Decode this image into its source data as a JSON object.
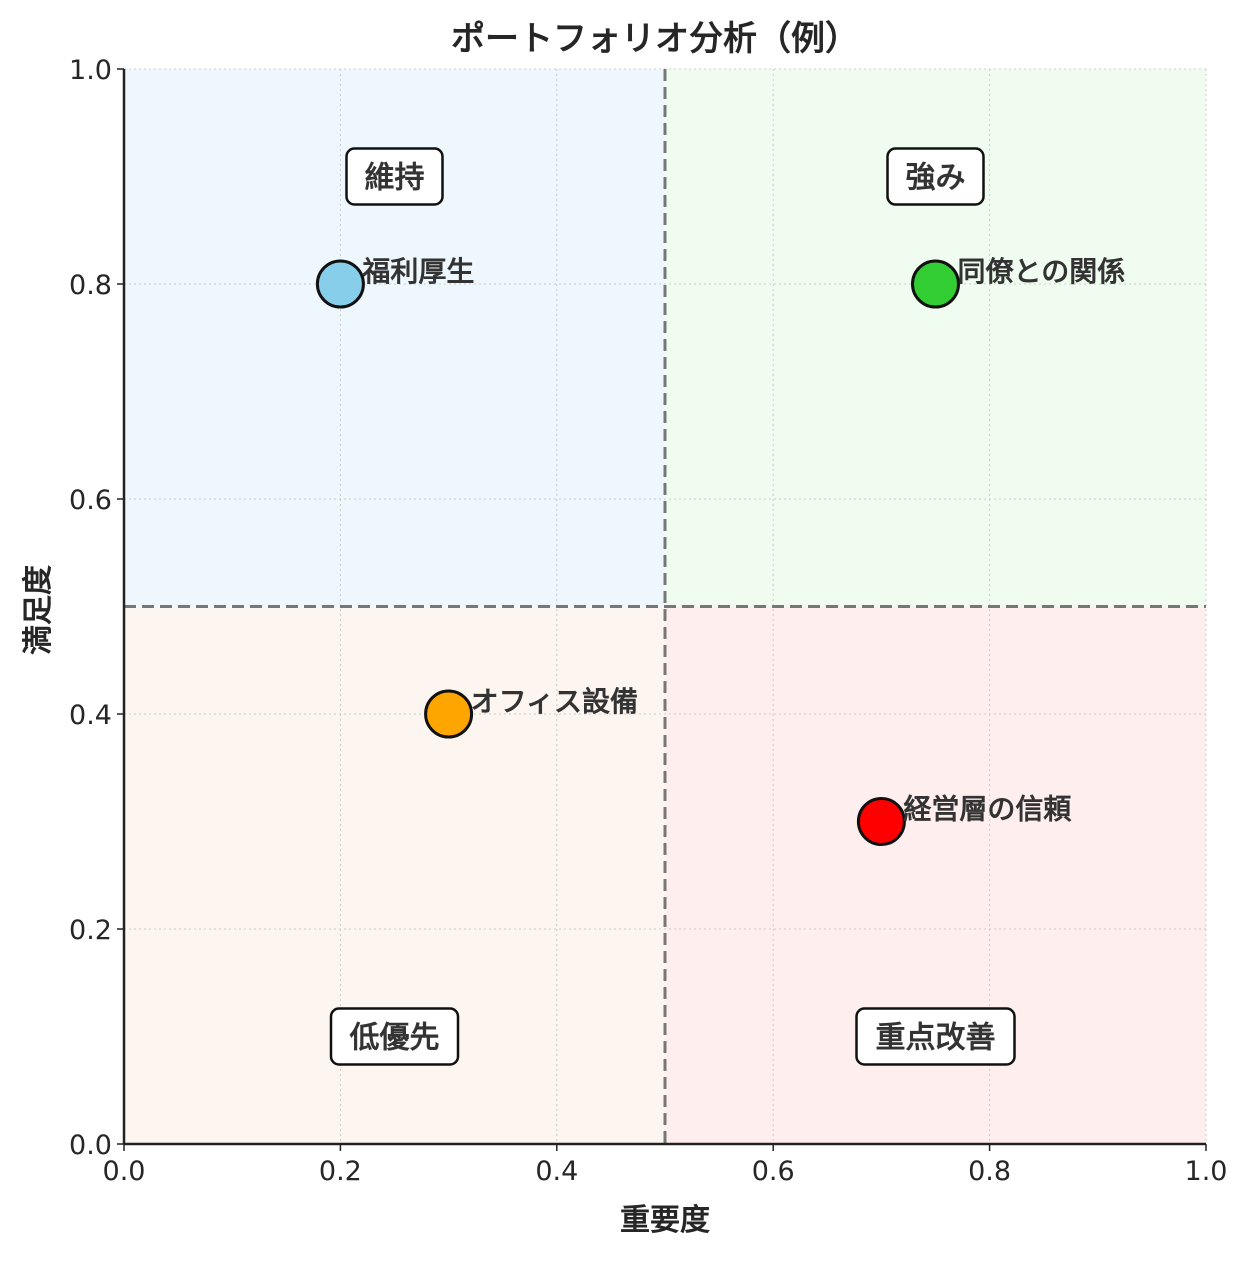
{
  "chart_data": {
    "type": "scatter",
    "title": "ポートフォリオ分析（例）",
    "xlabel": "重要度",
    "ylabel": "満足度",
    "xlim": [
      0,
      1
    ],
    "ylim": [
      0,
      1
    ],
    "grid": true,
    "xticks": [
      "0.0",
      "0.2",
      "0.4",
      "0.6",
      "0.8",
      "1.0"
    ],
    "yticks": [
      "0.0",
      "0.2",
      "0.4",
      "0.6",
      "0.8",
      "1.0"
    ],
    "threshold_x": 0.5,
    "threshold_y": 0.5,
    "quadrants": [
      {
        "label": "維持",
        "x": 0.25,
        "y": 0.9,
        "color": "#eef6fe",
        "range_x": [
          0,
          0.5
        ],
        "range_y": [
          0.5,
          1
        ]
      },
      {
        "label": "強み",
        "x": 0.75,
        "y": 0.9,
        "color": "#effcef",
        "range_x": [
          0.5,
          1
        ],
        "range_y": [
          0.5,
          1
        ]
      },
      {
        "label": "低優先",
        "x": 0.25,
        "y": 0.1,
        "color": "#fdf5f0",
        "range_x": [
          0,
          0.5
        ],
        "range_y": [
          0,
          0.5
        ]
      },
      {
        "label": "重点改善",
        "x": 0.75,
        "y": 0.1,
        "color": "#feeeee",
        "range_x": [
          0.5,
          1
        ],
        "range_y": [
          0,
          0.5
        ]
      }
    ],
    "points": [
      {
        "label": "福利厚生",
        "x": 0.2,
        "y": 0.8,
        "color": "#87ceeb"
      },
      {
        "label": "同僚との関係",
        "x": 0.75,
        "y": 0.8,
        "color": "#32cd32"
      },
      {
        "label": "オフィス設備",
        "x": 0.3,
        "y": 0.4,
        "color": "#ffa500"
      },
      {
        "label": "経営層の信頼",
        "x": 0.7,
        "y": 0.3,
        "color": "#ff0000"
      }
    ]
  }
}
